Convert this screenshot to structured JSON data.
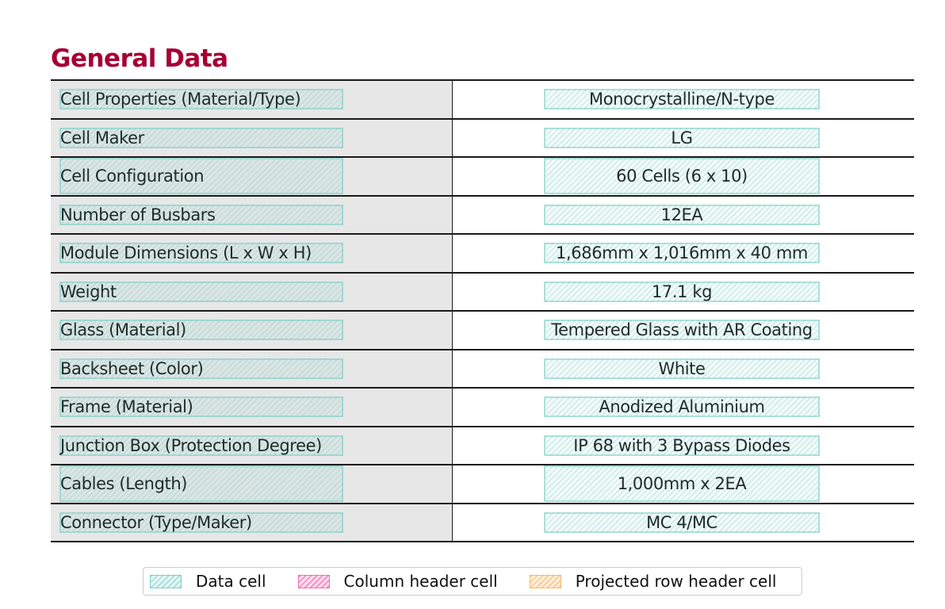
{
  "document": {
    "title": "General Data",
    "rows": [
      {
        "label": "Cell Properties (Material/Type)",
        "value": "Monocrystalline/N-type"
      },
      {
        "label": "Cell Maker",
        "value": "LG"
      },
      {
        "label": "Cell Configuration",
        "value": "60 Cells (6 x 10)"
      },
      {
        "label": "Number of Busbars",
        "value": "12EA"
      },
      {
        "label": "Module Dimensions (L x W x H)",
        "value": "1,686mm x 1,016mm x 40 mm"
      },
      {
        "label": "Weight",
        "value": "17.1 kg"
      },
      {
        "label": "Glass (Material)",
        "value": "Tempered Glass with AR Coating"
      },
      {
        "label": "Backsheet (Color)",
        "value": "White"
      },
      {
        "label": "Frame (Material)",
        "value": "Anodized Aluminium"
      },
      {
        "label": "Junction Box (Protection Degree)",
        "value": "IP 68 with 3 Bypass Diodes"
      },
      {
        "label": "Cables (Length)",
        "value": "1,000mm x 2EA"
      },
      {
        "label": "Connector (Type/Maker)",
        "value": "MC 4/MC"
      }
    ]
  },
  "legend": {
    "items": [
      {
        "label": "Data cell",
        "color": "#7ecdc6"
      },
      {
        "label": "Column header cell",
        "color": "#f06aae"
      },
      {
        "label": "Projected row header cell",
        "color": "#f5b766"
      }
    ]
  },
  "colors": {
    "title": "#a50034",
    "label_background": "#e7e7e7",
    "rule": "#1a1a1a"
  }
}
